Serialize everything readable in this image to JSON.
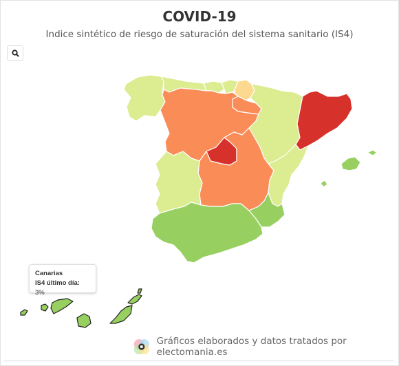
{
  "header": {
    "title": "COVID-19",
    "subtitle": "Indice sintético de riesgo de saturación del sistema sanitario (IS4)"
  },
  "toolbar": {
    "search_icon": "search-icon"
  },
  "colors": {
    "light_green": "#dcec90",
    "green": "#97cf60",
    "orange": "#fa8c58",
    "red": "#d7312b",
    "yellow": "#fcd98e"
  },
  "regions": [
    {
      "name": "Galicia",
      "color": "light_green"
    },
    {
      "name": "Asturias",
      "color": "light_green"
    },
    {
      "name": "Cantabria",
      "color": "light_green"
    },
    {
      "name": "País Vasco",
      "color": "light_green"
    },
    {
      "name": "Navarra",
      "color": "yellow"
    },
    {
      "name": "La Rioja",
      "color": "orange"
    },
    {
      "name": "Castilla y León",
      "color": "orange"
    },
    {
      "name": "Aragón",
      "color": "light_green"
    },
    {
      "name": "Cataluña",
      "color": "red"
    },
    {
      "name": "Madrid",
      "color": "red"
    },
    {
      "name": "Castilla-La Mancha",
      "color": "orange"
    },
    {
      "name": "Extremadura",
      "color": "light_green"
    },
    {
      "name": "Comunidad Valenciana",
      "color": "light_green"
    },
    {
      "name": "Murcia",
      "color": "green"
    },
    {
      "name": "Andalucía",
      "color": "green"
    },
    {
      "name": "Baleares",
      "color": "green"
    },
    {
      "name": "Canarias",
      "color": "green"
    }
  ],
  "tooltip": {
    "region": "Canarias",
    "metric_label": "IS4 último día:",
    "metric_value": "3%"
  },
  "footer": {
    "credit": "Gráficos elaborados y datos tratados por electomania.es"
  }
}
